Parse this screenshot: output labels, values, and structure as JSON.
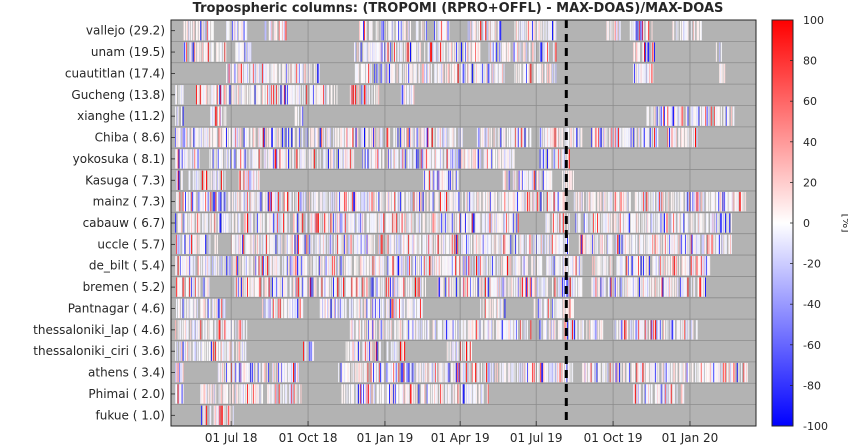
{
  "chart_data": {
    "type": "heatmap",
    "title": "Tropospheric columns: (TROPOMI (RPRO+OFFL) - MAX-DOAS)/MAX-DOAS",
    "stations": [
      "vallejo (29.2)",
      "unam (19.5)",
      "cuautitlan (17.4)",
      "Gucheng (13.8)",
      "xianghe (11.2)",
      "Chiba ( 8.6)",
      "yokosuka ( 8.1)",
      "Kasuga ( 7.3)",
      "mainz ( 7.3)",
      "cabauw ( 6.7)",
      "uccle ( 5.7)",
      "de_bilt ( 5.4)",
      "bremen ( 5.2)",
      "Pantnagar ( 4.6)",
      "thessaloniki_lap ( 4.6)",
      "thessaloniki_ciri ( 3.6)",
      "athens ( 3.4)",
      "Phimai ( 2.0)",
      "fukue ( 1.0)"
    ],
    "x_ticks": [
      {
        "date": "2018-07-01",
        "label": "01 Jul 18"
      },
      {
        "date": "2018-10-01",
        "label": "01 Oct 18"
      },
      {
        "date": "2019-01-01",
        "label": "01 Jan 19"
      },
      {
        "date": "2019-04-01",
        "label": "01 Apr 19"
      },
      {
        "date": "2019-07-01",
        "label": "01 Jul 19"
      },
      {
        "date": "2019-10-01",
        "label": "01 Oct 19"
      },
      {
        "date": "2020-01-01",
        "label": "01 Jan 20"
      }
    ],
    "xlim": [
      "2018-04-20",
      "2020-03-20"
    ],
    "vline_date": "2019-08-06",
    "colorbar": {
      "label": "[%]",
      "range": [
        -100,
        100
      ],
      "ticks": [
        100,
        80,
        60,
        40,
        20,
        0,
        -20,
        -40,
        -60,
        -80,
        -100
      ],
      "colors": {
        "low": "#0000ff",
        "mid": "#ffffff",
        "high": "#ff0000"
      }
    },
    "background_color": "#b3b3b3",
    "grid": true,
    "coverage": [
      {
        "station": "vallejo (29.2)",
        "periods": [
          [
            "2018-05-05",
            "2018-06-10"
          ],
          [
            "2018-06-25",
            "2018-07-20"
          ],
          [
            "2018-08-10",
            "2018-09-05"
          ],
          [
            "2018-12-01",
            "2019-02-20"
          ],
          [
            "2019-03-01",
            "2019-03-20"
          ],
          [
            "2019-04-10",
            "2019-05-20"
          ],
          [
            "2019-06-05",
            "2019-07-25"
          ],
          [
            "2019-09-20",
            "2019-10-10"
          ],
          [
            "2019-10-20",
            "2019-11-20"
          ],
          [
            "2019-12-10",
            "2019-12-30"
          ],
          [
            "2020-01-01",
            "2020-01-15"
          ]
        ]
      },
      {
        "station": "unam (19.5)",
        "periods": [
          [
            "2018-05-05",
            "2018-06-25"
          ],
          [
            "2018-07-05",
            "2018-07-25"
          ],
          [
            "2018-11-25",
            "2019-04-25"
          ],
          [
            "2019-05-05",
            "2019-07-25"
          ],
          [
            "2019-10-25",
            "2019-11-20"
          ],
          [
            "2020-02-01",
            "2020-02-10"
          ]
        ]
      },
      {
        "station": "cuautitlan (17.4)",
        "periods": [
          [
            "2018-06-25",
            "2018-10-15"
          ],
          [
            "2018-11-25",
            "2019-05-25"
          ],
          [
            "2019-06-05",
            "2019-07-25"
          ],
          [
            "2019-10-25",
            "2019-11-20"
          ],
          [
            "2020-02-05",
            "2020-02-12"
          ]
        ]
      },
      {
        "station": "Gucheng (13.8)",
        "periods": [
          [
            "2018-04-25",
            "2018-05-05"
          ],
          [
            "2018-05-20",
            "2018-11-05"
          ],
          [
            "2018-11-20",
            "2018-12-25"
          ],
          [
            "2019-01-20",
            "2019-02-05"
          ]
        ]
      },
      {
        "station": "xianghe (11.2)",
        "periods": [
          [
            "2018-04-25",
            "2018-05-05"
          ],
          [
            "2018-06-05",
            "2018-06-25"
          ],
          [
            "2018-09-15",
            "2018-09-25"
          ],
          [
            "2019-11-10",
            "2020-02-25"
          ]
        ]
      },
      {
        "station": "Chiba ( 8.6)",
        "periods": [
          [
            "2018-04-25",
            "2019-04-05"
          ],
          [
            "2019-04-20",
            "2019-06-25"
          ],
          [
            "2019-07-05",
            "2019-08-25"
          ],
          [
            "2019-09-05",
            "2019-11-25"
          ],
          [
            "2019-12-05",
            "2020-01-10"
          ]
        ]
      },
      {
        "station": "yokosuka ( 8.1)",
        "periods": [
          [
            "2018-04-25",
            "2018-05-25"
          ],
          [
            "2018-06-05",
            "2018-11-25"
          ],
          [
            "2018-12-05",
            "2019-06-05"
          ],
          [
            "2019-07-05",
            "2019-08-10"
          ]
        ]
      },
      {
        "station": "Kasuga ( 7.3)",
        "periods": [
          [
            "2018-04-25",
            "2018-06-25"
          ],
          [
            "2018-07-10",
            "2018-08-05"
          ],
          [
            "2019-02-15",
            "2019-03-30"
          ],
          [
            "2019-05-20",
            "2019-07-20"
          ],
          [
            "2019-07-30",
            "2019-08-15"
          ]
        ]
      },
      {
        "station": "mainz ( 7.3)",
        "periods": [
          [
            "2018-04-25",
            "2019-08-05"
          ],
          [
            "2019-08-15",
            "2020-03-10"
          ]
        ]
      },
      {
        "station": "cabauw ( 6.7)",
        "periods": [
          [
            "2018-04-25",
            "2019-06-10"
          ],
          [
            "2019-07-10",
            "2019-08-10"
          ],
          [
            "2019-08-15",
            "2020-02-20"
          ]
        ]
      },
      {
        "station": "uccle ( 5.7)",
        "periods": [
          [
            "2018-04-25",
            "2018-06-15"
          ],
          [
            "2018-07-01",
            "2019-08-10"
          ],
          [
            "2019-08-20",
            "2020-02-20"
          ]
        ]
      },
      {
        "station": "de_bilt ( 5.4)",
        "periods": [
          [
            "2018-04-25",
            "2019-08-25"
          ],
          [
            "2019-09-05",
            "2020-01-25"
          ]
        ]
      },
      {
        "station": "bremen ( 5.2)",
        "periods": [
          [
            "2018-04-25",
            "2018-06-05"
          ],
          [
            "2018-07-05",
            "2019-02-20"
          ],
          [
            "2019-03-05",
            "2019-08-25"
          ],
          [
            "2019-09-05",
            "2020-01-20"
          ]
        ]
      },
      {
        "station": "Pantnagar ( 4.6)",
        "periods": [
          [
            "2018-04-25",
            "2018-06-25"
          ],
          [
            "2018-08-05",
            "2018-09-25"
          ],
          [
            "2018-10-15",
            "2019-02-15"
          ],
          [
            "2019-04-25",
            "2019-05-25"
          ],
          [
            "2019-06-25",
            "2019-08-15"
          ]
        ]
      },
      {
        "station": "thessaloniki_lap ( 4.6)",
        "periods": [
          [
            "2018-04-25",
            "2018-07-20"
          ],
          [
            "2018-11-20",
            "2019-06-25"
          ],
          [
            "2019-07-05",
            "2019-09-20"
          ],
          [
            "2019-10-01",
            "2020-01-10"
          ]
        ]
      },
      {
        "station": "thessaloniki_ciri ( 3.6)",
        "periods": [
          [
            "2018-04-25",
            "2018-07-20"
          ],
          [
            "2018-09-25",
            "2018-10-10"
          ],
          [
            "2018-11-15",
            "2019-01-25"
          ],
          [
            "2019-03-15",
            "2019-04-15"
          ]
        ]
      },
      {
        "station": "athens ( 3.4)",
        "periods": [
          [
            "2018-04-25",
            "2018-05-05"
          ],
          [
            "2018-06-15",
            "2018-09-20"
          ],
          [
            "2018-11-05",
            "2019-08-15"
          ],
          [
            "2019-08-25",
            "2020-03-10"
          ]
        ]
      },
      {
        "station": "Phimai ( 2.0)",
        "periods": [
          [
            "2018-04-25",
            "2018-05-05"
          ],
          [
            "2018-05-25",
            "2018-09-25"
          ],
          [
            "2018-11-10",
            "2019-05-05"
          ],
          [
            "2019-10-25",
            "2019-12-25"
          ]
        ]
      },
      {
        "station": "fukue ( 1.0)",
        "periods": [
          [
            "2018-05-25",
            "2018-07-05"
          ]
        ]
      }
    ]
  }
}
